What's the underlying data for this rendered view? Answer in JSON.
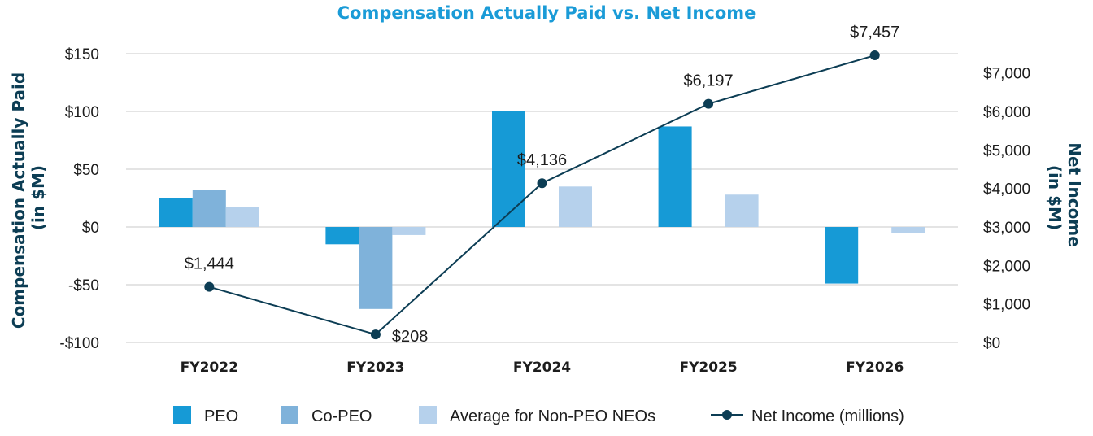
{
  "chart_data": {
    "type": "bar",
    "title": "Compensation Actually Paid vs. Net Income",
    "categories": [
      "FY2022",
      "FY2023",
      "FY2024",
      "FY2025",
      "FY2026"
    ],
    "y_left": {
      "label_lines": [
        "Compensation Actually Paid",
        "(in $M)"
      ],
      "ticks": [
        150,
        100,
        50,
        0,
        -50,
        -100
      ],
      "tick_labels": [
        "$150",
        "$100",
        "$50",
        "$0",
        "-$50",
        "-$100"
      ],
      "ylim": [
        -100,
        150
      ]
    },
    "y_right": {
      "label_lines": [
        "Net Income",
        "(in $M)"
      ],
      "ticks": [
        7000,
        6000,
        5000,
        4000,
        3000,
        2000,
        1000,
        0
      ],
      "tick_labels": [
        "$7,000",
        "$6,000",
        "$5,000",
        "$4,000",
        "$3,000",
        "$2,000",
        "$1,000",
        "$0"
      ],
      "ylim": [
        0,
        7500
      ]
    },
    "grid": true,
    "series": [
      {
        "name": "PEO",
        "kind": "bar",
        "axis": "left",
        "color": "#169ad6",
        "values": [
          25,
          -15,
          100,
          87,
          -49
        ]
      },
      {
        "name": "Co-PEO",
        "kind": "bar",
        "axis": "left",
        "color": "#7fb2da",
        "values": [
          32,
          -71,
          null,
          null,
          null
        ]
      },
      {
        "name": "Average for Non-PEO NEOs",
        "kind": "bar",
        "axis": "left",
        "color": "#b6d1ec",
        "values": [
          17,
          -7,
          35,
          28,
          -5
        ]
      },
      {
        "name": "Net Income (millions)",
        "kind": "line",
        "axis": "right",
        "color": "#0c3d54",
        "values": [
          1444,
          208,
          4136,
          6197,
          7457
        ],
        "labels": [
          "$1,444",
          "$208",
          "$4,136",
          "$6,197",
          "$7,457"
        ]
      }
    ],
    "legend_position": "bottom"
  }
}
